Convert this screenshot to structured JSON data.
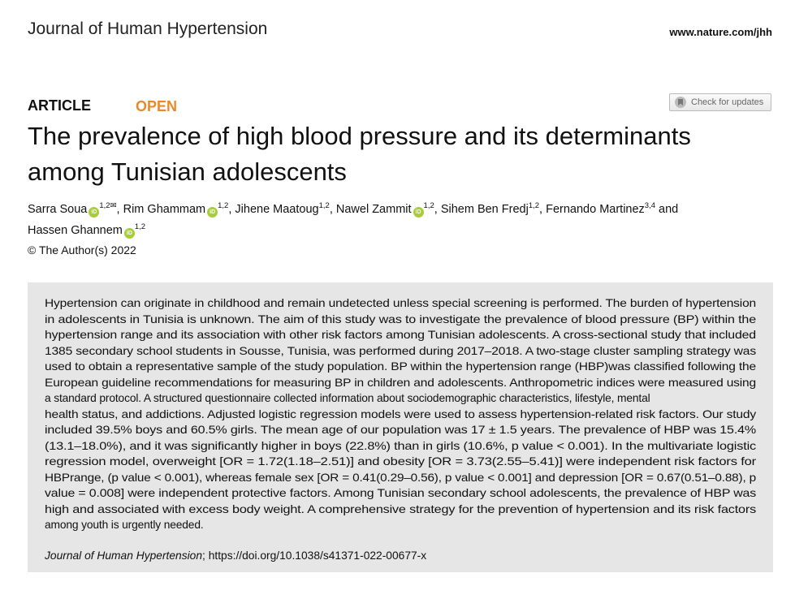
{
  "header": {
    "journal": "Journal of Human Hypertension",
    "site": "www.nature.com/jhh"
  },
  "article": {
    "type": "ARTICLE",
    "access": "OPEN",
    "check_updates": "Check for updates",
    "title_lines": [
      "The prevalence of high blood pressure and its determinants",
      "among Tunisian adolescents"
    ],
    "authors": [
      {
        "name": "Sarra Soua",
        "orcid": true,
        "aff": "1,2",
        "corresponding": "✉",
        "sep": ", "
      },
      {
        "name": "Rim Ghammam",
        "orcid": true,
        "aff": "1,2",
        "sep": ", "
      },
      {
        "name": "Jihene Maatoug",
        "orcid": false,
        "aff": "1,2",
        "sep": ", "
      },
      {
        "name": "Nawel Zammit",
        "orcid": true,
        "aff": "1,2",
        "sep": ", "
      },
      {
        "name": "Sihem Ben Fredj",
        "orcid": false,
        "aff": "1,2",
        "sep": ", "
      },
      {
        "name": "Fernando Martinez",
        "orcid": false,
        "aff": "3,4",
        "sep": " and "
      },
      {
        "name": "Hassen Ghannem",
        "orcid": true,
        "aff": "1,2",
        "sep": ""
      }
    ],
    "orcid_label": "iD",
    "copyright": "© The Author(s) 2022",
    "abstract_lines": [
      "Hypertension can originate in childhood and remain undetected unless special screening is performed. The burden of hypertension",
      "in adolescents in Tunisia is unknown. The aim of this study was to investigate the prevalence of blood pressure (BP) within the",
      "hypertension range and its association with other risk factors among Tunisian adolescents. A cross-sectional study that included",
      "1385 secondary school students in Sousse, Tunisia, was performed during 2017–2018. A two-stage cluster sampling strategy was",
      "used to obtain a representative sample of the study population. BP within the hypertension range (HBP)was classified following the",
      "European guideline recommendations for measuring BP in children and adolescents. Anthropometric indices were measured using",
      "a standard protocol. A structured questionnaire collected information about sociodemographic characteristics, lifestyle, mental",
      "health status, and addictions. Adjusted logistic regression models were used to assess hypertension-related risk factors. Our study",
      "included 39.5% boys and 60.5% girls. The mean age of our population was 17 ± 1.5 years. The prevalence of HBP was 15.4%",
      "(13.1–18.0%), and it was significantly higher in boys (22.8%) than in girls (10.6%, p value < 0.001). In the multivariate logistic",
      "regression model, overweight [OR = 1.72(1.18–2.51)] and obesity [OR = 3.73(2.55–5.41)] were independent risk factors for",
      "HBPrange, (p value < 0.001), whereas female sex [OR = 0.41(0.29–0.56), p value < 0.001] and depression [OR = 0.67(0.51–0.88), p",
      "value = 0.008] were independent protective factors. Among Tunisian secondary school adolescents, the prevalence of HBP was",
      "high and associated with excess body weight. A comprehensive strategy for the prevention of hypertension and its risk factors",
      "among youth is urgently needed."
    ],
    "citation_journal": "Journal of Human Hypertension",
    "citation_doi": "; https://doi.org/10.1038/s41371-022-00677-x"
  },
  "colors": {
    "open": "#e8892c",
    "abstract_bg": "#e6e6e6",
    "orcid": "#a6ce39"
  }
}
